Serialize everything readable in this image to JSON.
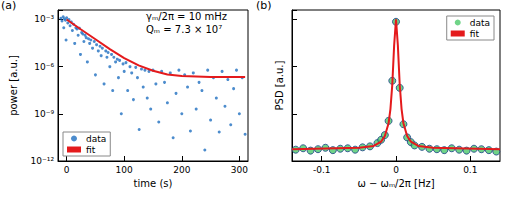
{
  "chart_data": [
    {
      "type": "scatter",
      "title": "(a)",
      "annotations": [
        "γₘ/2π = 10 mHz",
        "Qₘ = 7.3 × 10⁷"
      ],
      "x_label": "time (s)",
      "y_label": "power [a.u.]",
      "log": "y",
      "grid": false,
      "legend": "lower left",
      "xlim": [
        -15,
        315
      ],
      "xticks": [
        0,
        100,
        200,
        300
      ],
      "ylim": [
        1e-12,
        0.004
      ],
      "yticks": [
        {
          "value": 1e-12,
          "label": "10⁻¹²"
        },
        {
          "value": 1e-09,
          "label": "10⁻⁹"
        },
        {
          "value": 1e-06,
          "label": "10⁻⁶"
        },
        {
          "value": 0.001,
          "label": "10⁻³"
        }
      ],
      "series": [
        {
          "name": "data",
          "type": "scatter",
          "marker": "circle",
          "color": "#1f6fc0",
          "x": [
            -10,
            -8,
            -6,
            -5,
            -4,
            -2,
            -1,
            0,
            2,
            4,
            6,
            8,
            10,
            12,
            14,
            16,
            18,
            20,
            22,
            24,
            26,
            28,
            30,
            32,
            34,
            36,
            38,
            40,
            42,
            45,
            48,
            50,
            52,
            55,
            58,
            60,
            62,
            65,
            68,
            70,
            72,
            75,
            78,
            80,
            82,
            85,
            88,
            90,
            92,
            95,
            98,
            100,
            103,
            106,
            110,
            113,
            116,
            120,
            123,
            126,
            130,
            133,
            136,
            140,
            143,
            146,
            150,
            155,
            160,
            165,
            170,
            175,
            180,
            185,
            190,
            195,
            200,
            205,
            210,
            215,
            220,
            225,
            230,
            235,
            240,
            245,
            250,
            255,
            260,
            265,
            270,
            275,
            280,
            285,
            290,
            295,
            300,
            305,
            310
          ],
          "values": [
            0.0012,
            0.0008,
            0.0015,
            0.0003,
            0.0011,
            0.0009,
            5e-05,
            0.0013,
            0.0006,
            0.001,
            0.0004,
            0.0007,
            0.0002,
            0.0005,
            3e-05,
            0.0003,
            0.00025,
            0.0001,
            0.00028,
            6e-06,
            0.00015,
            0.00012,
            4e-05,
            0.0001,
            7e-05,
            2e-06,
            6e-05,
            3e-05,
            5e-05,
            1.5e-05,
            4e-05,
            3e-07,
            2.5e-05,
            1e-05,
            2e-05,
            5e-06,
            1.5e-05,
            8e-08,
            1e-05,
            4e-06,
            8e-06,
            1e-06,
            6e-06,
            3e-08,
            4e-06,
            2e-06,
            3e-06,
            2e-07,
            2.5e-06,
            1e-09,
            1.5e-06,
            5e-07,
            1.8e-06,
            3e-08,
            1e-06,
            4e-07,
            8e-09,
            9e-07,
            2e-07,
            1e-10,
            7e-07,
            5e-08,
            6e-07,
            1e-08,
            5e-07,
            2e-09,
            6e-07,
            8e-08,
            3e-10,
            5e-07,
            1e-07,
            5e-09,
            4e-07,
            3e-11,
            2e-08,
            6e-07,
            1e-09,
            3e-07,
            5e-08,
            8e-11,
            4e-07,
            2e-09,
            1e-07,
            3e-08,
            5e-12,
            6e-07,
            4e-10,
            2e-07,
            1e-08,
            7e-11,
            5e-07,
            3e-09,
            1.5e-07,
            2e-10,
            4e-08,
            6e-07,
            1e-09,
            2e-07,
            5e-11
          ]
        },
        {
          "name": "fit",
          "type": "line",
          "line_style": "solid",
          "color": "#e41a1c",
          "x": [
            0,
            25,
            50,
            75,
            100,
            125,
            150,
            175,
            200,
            250,
            310
          ],
          "values": [
            0.001,
            0.00023,
            5.5e-05,
            1.3e-05,
            3.5e-06,
            1.2e-06,
            5.5e-07,
            3.2e-07,
            2.5e-07,
            2.2e-07,
            2.2e-07
          ]
        }
      ]
    },
    {
      "type": "scatter",
      "title": "(b)",
      "x_label": "ω − ωₘ/2π [Hz]",
      "y_label": "PSD [a.u.]",
      "grid": false,
      "legend": "upper right",
      "tick_labels": "x",
      "xlim": [
        -0.14,
        0.14
      ],
      "xticks": [
        -0.1,
        0,
        0.1
      ],
      "ylim": [
        0,
        3.2
      ],
      "series": [
        {
          "name": "data",
          "type": "scatter",
          "marker": "circle",
          "color": "#4cc96a",
          "x": [
            -0.135,
            -0.125,
            -0.115,
            -0.105,
            -0.095,
            -0.085,
            -0.075,
            -0.065,
            -0.055,
            -0.045,
            -0.035,
            -0.025,
            -0.02,
            -0.015,
            -0.01,
            -0.005,
            0,
            0.005,
            0.01,
            0.015,
            0.02,
            0.025,
            0.035,
            0.045,
            0.055,
            0.065,
            0.075,
            0.085,
            0.095,
            0.105,
            0.115,
            0.125,
            0.135
          ],
          "values": [
            0.24,
            0.27,
            0.22,
            0.25,
            0.28,
            0.23,
            0.26,
            0.27,
            0.24,
            0.29,
            0.31,
            0.38,
            0.45,
            0.55,
            0.85,
            1.7,
            2.95,
            1.55,
            0.78,
            0.5,
            0.4,
            0.33,
            0.3,
            0.26,
            0.25,
            0.23,
            0.27,
            0.24,
            0.22,
            0.26,
            0.25,
            0.23,
            0.2
          ]
        },
        {
          "name": "fit",
          "type": "line",
          "line_style": "solid",
          "color": "#e41a1c",
          "x": [
            -0.14,
            -0.05,
            -0.03,
            -0.02,
            -0.015,
            -0.01,
            -0.0075,
            -0.005,
            -0.0025,
            0,
            0.0025,
            0.005,
            0.0075,
            0.01,
            0.015,
            0.02,
            0.03,
            0.05,
            0.14
          ],
          "values": [
            0.25,
            0.28,
            0.32,
            0.41,
            0.53,
            0.8,
            1.1,
            1.62,
            2.45,
            3.0,
            2.45,
            1.62,
            1.1,
            0.8,
            0.53,
            0.41,
            0.32,
            0.28,
            0.25
          ]
        }
      ]
    }
  ]
}
